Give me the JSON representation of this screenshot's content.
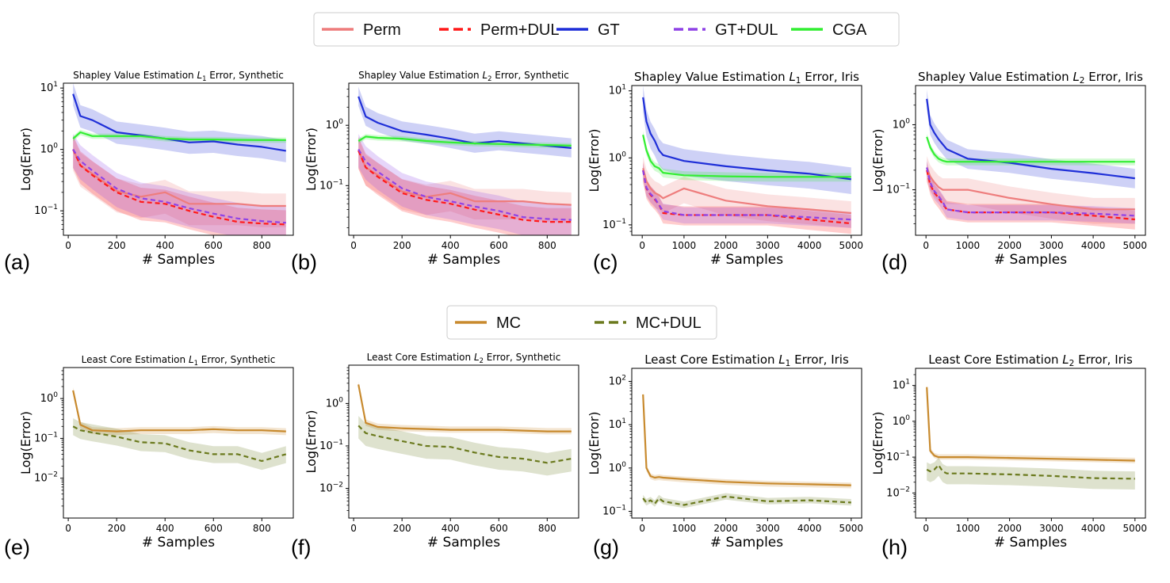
{
  "legend_top": [
    {
      "label": "Perm",
      "color": "#ee7d7d",
      "dash": ""
    },
    {
      "label": "Perm+DUL",
      "color": "#ff1a1a",
      "dash": "12,6"
    },
    {
      "label": "GT",
      "color": "#1f2fd8",
      "dash": ""
    },
    {
      "label": "GT+DUL",
      "color": "#8f43e6",
      "dash": "12,6"
    },
    {
      "label": "CGA",
      "color": "#33ee33",
      "dash": ""
    }
  ],
  "legend_bottom": [
    {
      "label": "MC",
      "color": "#c88a2e",
      "dash": ""
    },
    {
      "label": "MC+DUL",
      "color": "#6b7a1e",
      "dash": "12,6"
    }
  ],
  "chart_data": [
    {
      "id": "a",
      "type": "line",
      "letter": "(a)",
      "title_pre": "Shapley Value Estimation ",
      "title_var": "L",
      "title_sub": "1",
      "title_post": " Error, Synthetic",
      "xlabel": "# Samples",
      "ylabel": "Log(Error)",
      "yscale": "log",
      "xlim": [
        -20,
        930
      ],
      "ylim": [
        0.04,
        12
      ],
      "xticks": [
        0,
        200,
        400,
        600,
        800
      ],
      "yticks": [
        0.1,
        1,
        10
      ],
      "x": [
        20,
        50,
        100,
        200,
        300,
        400,
        500,
        600,
        700,
        800,
        900
      ],
      "series": [
        {
          "name": "Perm",
          "values": [
            1.0,
            0.55,
            0.4,
            0.21,
            0.17,
            0.2,
            0.13,
            0.13,
            0.13,
            0.12,
            0.12
          ],
          "band": [
            0.45,
            1.6
          ]
        },
        {
          "name": "Perm+DUL",
          "values": [
            1.0,
            0.55,
            0.38,
            0.2,
            0.14,
            0.13,
            0.1,
            0.08,
            0.066,
            0.062,
            0.06
          ],
          "band": [
            0.5,
            1.7
          ]
        },
        {
          "name": "GT",
          "values": [
            8.0,
            3.5,
            3.0,
            1.9,
            1.7,
            1.5,
            1.3,
            1.35,
            1.2,
            1.1,
            0.95
          ],
          "band": [
            0.65,
            1.5
          ]
        },
        {
          "name": "GT+DUL",
          "values": [
            1.0,
            0.65,
            0.45,
            0.23,
            0.16,
            0.14,
            0.11,
            0.09,
            0.075,
            0.068,
            0.064
          ],
          "band": [
            0.5,
            1.8
          ]
        },
        {
          "name": "CGA",
          "values": [
            1.5,
            1.9,
            1.65,
            1.65,
            1.65,
            1.5,
            1.45,
            1.45,
            1.43,
            1.42,
            1.42
          ],
          "band": [
            0.9,
            1.1
          ]
        }
      ]
    },
    {
      "id": "b",
      "type": "line",
      "letter": "(b)",
      "title_pre": "Shapley Value Estimation ",
      "title_var": "L",
      "title_sub": "2",
      "title_post": " Error, Synthetic",
      "xlabel": "# Samples",
      "ylabel": "Log(Error)",
      "yscale": "log",
      "xlim": [
        -20,
        930
      ],
      "ylim": [
        0.015,
        5
      ],
      "xticks": [
        0,
        200,
        400,
        600,
        800
      ],
      "yticks": [
        0.1,
        1
      ],
      "x": [
        20,
        50,
        100,
        200,
        300,
        400,
        500,
        600,
        700,
        800,
        900
      ],
      "series": [
        {
          "name": "Perm",
          "values": [
            0.38,
            0.2,
            0.15,
            0.08,
            0.065,
            0.075,
            0.055,
            0.055,
            0.055,
            0.05,
            0.048
          ],
          "band": [
            0.5,
            1.6
          ]
        },
        {
          "name": "Perm+DUL",
          "values": [
            0.38,
            0.2,
            0.14,
            0.075,
            0.058,
            0.05,
            0.04,
            0.033,
            0.027,
            0.025,
            0.025
          ],
          "band": [
            0.5,
            1.7
          ]
        },
        {
          "name": "GT",
          "values": [
            3.0,
            1.4,
            1.1,
            0.8,
            0.7,
            0.6,
            0.5,
            0.55,
            0.5,
            0.46,
            0.42
          ],
          "band": [
            0.7,
            1.45
          ]
        },
        {
          "name": "GT+DUL",
          "values": [
            0.4,
            0.25,
            0.17,
            0.09,
            0.065,
            0.055,
            0.045,
            0.038,
            0.03,
            0.028,
            0.027
          ],
          "band": [
            0.5,
            1.8
          ]
        },
        {
          "name": "CGA",
          "values": [
            0.55,
            0.65,
            0.62,
            0.6,
            0.55,
            0.52,
            0.5,
            0.49,
            0.48,
            0.47,
            0.46
          ],
          "band": [
            0.9,
            1.1
          ]
        }
      ]
    },
    {
      "id": "c",
      "type": "line",
      "letter": "(c)",
      "title_pre": "Shapley Value Estimation ",
      "title_var": "L",
      "title_sub": "1",
      "title_post": " Error, Iris",
      "xlabel": "# Samples",
      "ylabel": "Log(Error)",
      "yscale": "log",
      "xlim": [
        -250,
        5250
      ],
      "ylim": [
        0.07,
        12
      ],
      "xticks": [
        0,
        1000,
        2000,
        3000,
        4000,
        5000
      ],
      "yticks": [
        0.1,
        1,
        10
      ],
      "x": [
        20,
        100,
        200,
        300,
        400,
        500,
        1000,
        2000,
        3000,
        4000,
        5000
      ],
      "series": [
        {
          "name": "Perm",
          "values": [
            0.7,
            0.45,
            0.35,
            0.3,
            0.28,
            0.25,
            0.35,
            0.23,
            0.19,
            0.17,
            0.15
          ],
          "band": [
            0.6,
            1.5
          ]
        },
        {
          "name": "Perm+DUL",
          "values": [
            0.65,
            0.35,
            0.28,
            0.24,
            0.2,
            0.15,
            0.14,
            0.14,
            0.14,
            0.12,
            0.105
          ],
          "band": [
            0.7,
            1.35
          ]
        },
        {
          "name": "GT",
          "values": [
            8.0,
            3.5,
            2.3,
            1.8,
            1.3,
            1.1,
            0.9,
            0.75,
            0.65,
            0.58,
            0.48
          ],
          "band": [
            0.6,
            1.5
          ]
        },
        {
          "name": "GT+DUL",
          "values": [
            0.65,
            0.36,
            0.29,
            0.25,
            0.2,
            0.16,
            0.14,
            0.14,
            0.14,
            0.13,
            0.12
          ],
          "band": [
            0.75,
            1.3
          ]
        },
        {
          "name": "CGA",
          "values": [
            2.2,
            1.3,
            0.9,
            0.75,
            0.7,
            0.6,
            0.55,
            0.53,
            0.52,
            0.52,
            0.52
          ],
          "band": [
            0.85,
            1.15
          ]
        }
      ]
    },
    {
      "id": "d",
      "type": "line",
      "letter": "(d)",
      "title_pre": "Shapley Value Estimation ",
      "title_var": "L",
      "title_sub": "2",
      "title_post": " Error, Iris",
      "xlabel": "# Samples",
      "ylabel": "Log(Error)",
      "yscale": "log",
      "xlim": [
        -250,
        5250
      ],
      "ylim": [
        0.02,
        4
      ],
      "xticks": [
        0,
        1000,
        2000,
        3000,
        4000,
        5000
      ],
      "yticks": [
        0.1,
        1
      ],
      "x": [
        20,
        100,
        200,
        300,
        400,
        500,
        1000,
        2000,
        3000,
        4000,
        5000
      ],
      "series": [
        {
          "name": "Perm",
          "values": [
            0.22,
            0.16,
            0.13,
            0.11,
            0.1,
            0.1,
            0.1,
            0.075,
            0.06,
            0.05,
            0.05
          ],
          "band": [
            0.6,
            1.5
          ]
        },
        {
          "name": "Perm+DUL",
          "values": [
            0.2,
            0.12,
            0.09,
            0.075,
            0.06,
            0.05,
            0.045,
            0.045,
            0.045,
            0.04,
            0.035
          ],
          "band": [
            0.7,
            1.35
          ]
        },
        {
          "name": "GT",
          "values": [
            2.5,
            1.0,
            0.75,
            0.6,
            0.5,
            0.42,
            0.3,
            0.26,
            0.21,
            0.18,
            0.15
          ],
          "band": [
            0.7,
            1.4
          ]
        },
        {
          "name": "GT+DUL",
          "values": [
            0.22,
            0.13,
            0.095,
            0.08,
            0.065,
            0.05,
            0.045,
            0.045,
            0.045,
            0.043,
            0.04
          ],
          "band": [
            0.75,
            1.3
          ]
        },
        {
          "name": "CGA",
          "values": [
            0.65,
            0.45,
            0.35,
            0.3,
            0.28,
            0.27,
            0.27,
            0.27,
            0.27,
            0.27,
            0.27
          ],
          "band": [
            0.88,
            1.12
          ]
        }
      ]
    },
    {
      "id": "e",
      "type": "line",
      "letter": "(e)",
      "title_pre": "Least Core Estimation ",
      "title_var": "L",
      "title_sub": "1",
      "title_post": " Error, Synthetic",
      "xlabel": "# Samples",
      "ylabel": "Log(Error)",
      "yscale": "log",
      "xlim": [
        -20,
        930
      ],
      "ylim": [
        0.001,
        6
      ],
      "xticks": [
        0,
        200,
        400,
        600,
        800
      ],
      "yticks": [
        0.01,
        0.1,
        1
      ],
      "x": [
        20,
        50,
        100,
        200,
        300,
        400,
        500,
        600,
        700,
        800,
        900
      ],
      "series": [
        {
          "name": "MC",
          "values": [
            1.6,
            0.22,
            0.16,
            0.15,
            0.16,
            0.16,
            0.16,
            0.17,
            0.16,
            0.16,
            0.15
          ],
          "band": [
            0.8,
            1.2
          ]
        },
        {
          "name": "MC+DUL",
          "values": [
            0.2,
            0.16,
            0.14,
            0.11,
            0.08,
            0.075,
            0.05,
            0.04,
            0.04,
            0.027,
            0.04
          ],
          "band": [
            0.6,
            1.6
          ]
        }
      ]
    },
    {
      "id": "f",
      "type": "line",
      "letter": "(f)",
      "title_pre": "Least Core Estimation ",
      "title_var": "L",
      "title_sub": "2",
      "title_post": " Error, Synthetic",
      "xlabel": "# Samples",
      "ylabel": "Log(Error)",
      "yscale": "log",
      "xlim": [
        -20,
        930
      ],
      "ylim": [
        0.002,
        8
      ],
      "xticks": [
        0,
        200,
        400,
        600,
        800
      ],
      "yticks": [
        0.01,
        0.1,
        1
      ],
      "x": [
        20,
        50,
        100,
        200,
        300,
        400,
        500,
        600,
        700,
        800,
        900
      ],
      "series": [
        {
          "name": "MC",
          "values": [
            2.8,
            0.35,
            0.28,
            0.26,
            0.25,
            0.24,
            0.24,
            0.24,
            0.23,
            0.22,
            0.22
          ],
          "band": [
            0.85,
            1.2
          ]
        },
        {
          "name": "MC+DUL",
          "values": [
            0.3,
            0.2,
            0.17,
            0.13,
            0.1,
            0.095,
            0.07,
            0.055,
            0.05,
            0.04,
            0.05
          ],
          "band": [
            0.5,
            1.7
          ]
        }
      ]
    },
    {
      "id": "g",
      "type": "line",
      "letter": "(g)",
      "title_pre": "Least Core Estimation ",
      "title_var": "L",
      "title_sub": "1",
      "title_post": " Error, Iris",
      "xlabel": "# Samples",
      "ylabel": "Log(Error)",
      "yscale": "log",
      "xlim": [
        -250,
        5250
      ],
      "ylim": [
        0.07,
        200
      ],
      "xticks": [
        0,
        1000,
        2000,
        3000,
        4000,
        5000
      ],
      "yticks": [
        0.1,
        1,
        10,
        100
      ],
      "x": [
        20,
        100,
        200,
        300,
        400,
        500,
        1000,
        2000,
        3000,
        4000,
        5000
      ],
      "series": [
        {
          "name": "MC",
          "values": [
            50,
            1.0,
            0.65,
            0.6,
            0.62,
            0.6,
            0.55,
            0.48,
            0.44,
            0.42,
            0.4
          ],
          "band": [
            0.85,
            1.15
          ]
        },
        {
          "name": "MC+DUL",
          "values": [
            0.2,
            0.16,
            0.18,
            0.15,
            0.2,
            0.17,
            0.14,
            0.22,
            0.17,
            0.18,
            0.16
          ],
          "band": [
            0.85,
            1.2
          ]
        }
      ]
    },
    {
      "id": "h",
      "type": "line",
      "letter": "(h)",
      "title_pre": "Least Core Estimation ",
      "title_var": "L",
      "title_sub": "2",
      "title_post": " Error, Iris",
      "xlabel": "# Samples",
      "ylabel": "Log(Error)",
      "yscale": "log",
      "xlim": [
        -250,
        5250
      ],
      "ylim": [
        0.002,
        30
      ],
      "xticks": [
        0,
        1000,
        2000,
        3000,
        4000,
        5000
      ],
      "yticks": [
        0.01,
        0.1,
        1,
        10
      ],
      "x": [
        20,
        100,
        200,
        300,
        400,
        500,
        1000,
        2000,
        3000,
        4000,
        5000
      ],
      "series": [
        {
          "name": "MC",
          "values": [
            9.0,
            0.15,
            0.11,
            0.1,
            0.1,
            0.1,
            0.1,
            0.095,
            0.09,
            0.085,
            0.08
          ],
          "band": [
            0.85,
            1.2
          ]
        },
        {
          "name": "MC+DUL",
          "values": [
            0.045,
            0.04,
            0.045,
            0.06,
            0.04,
            0.035,
            0.035,
            0.033,
            0.03,
            0.026,
            0.025
          ],
          "band": [
            0.5,
            1.6
          ]
        }
      ]
    }
  ]
}
